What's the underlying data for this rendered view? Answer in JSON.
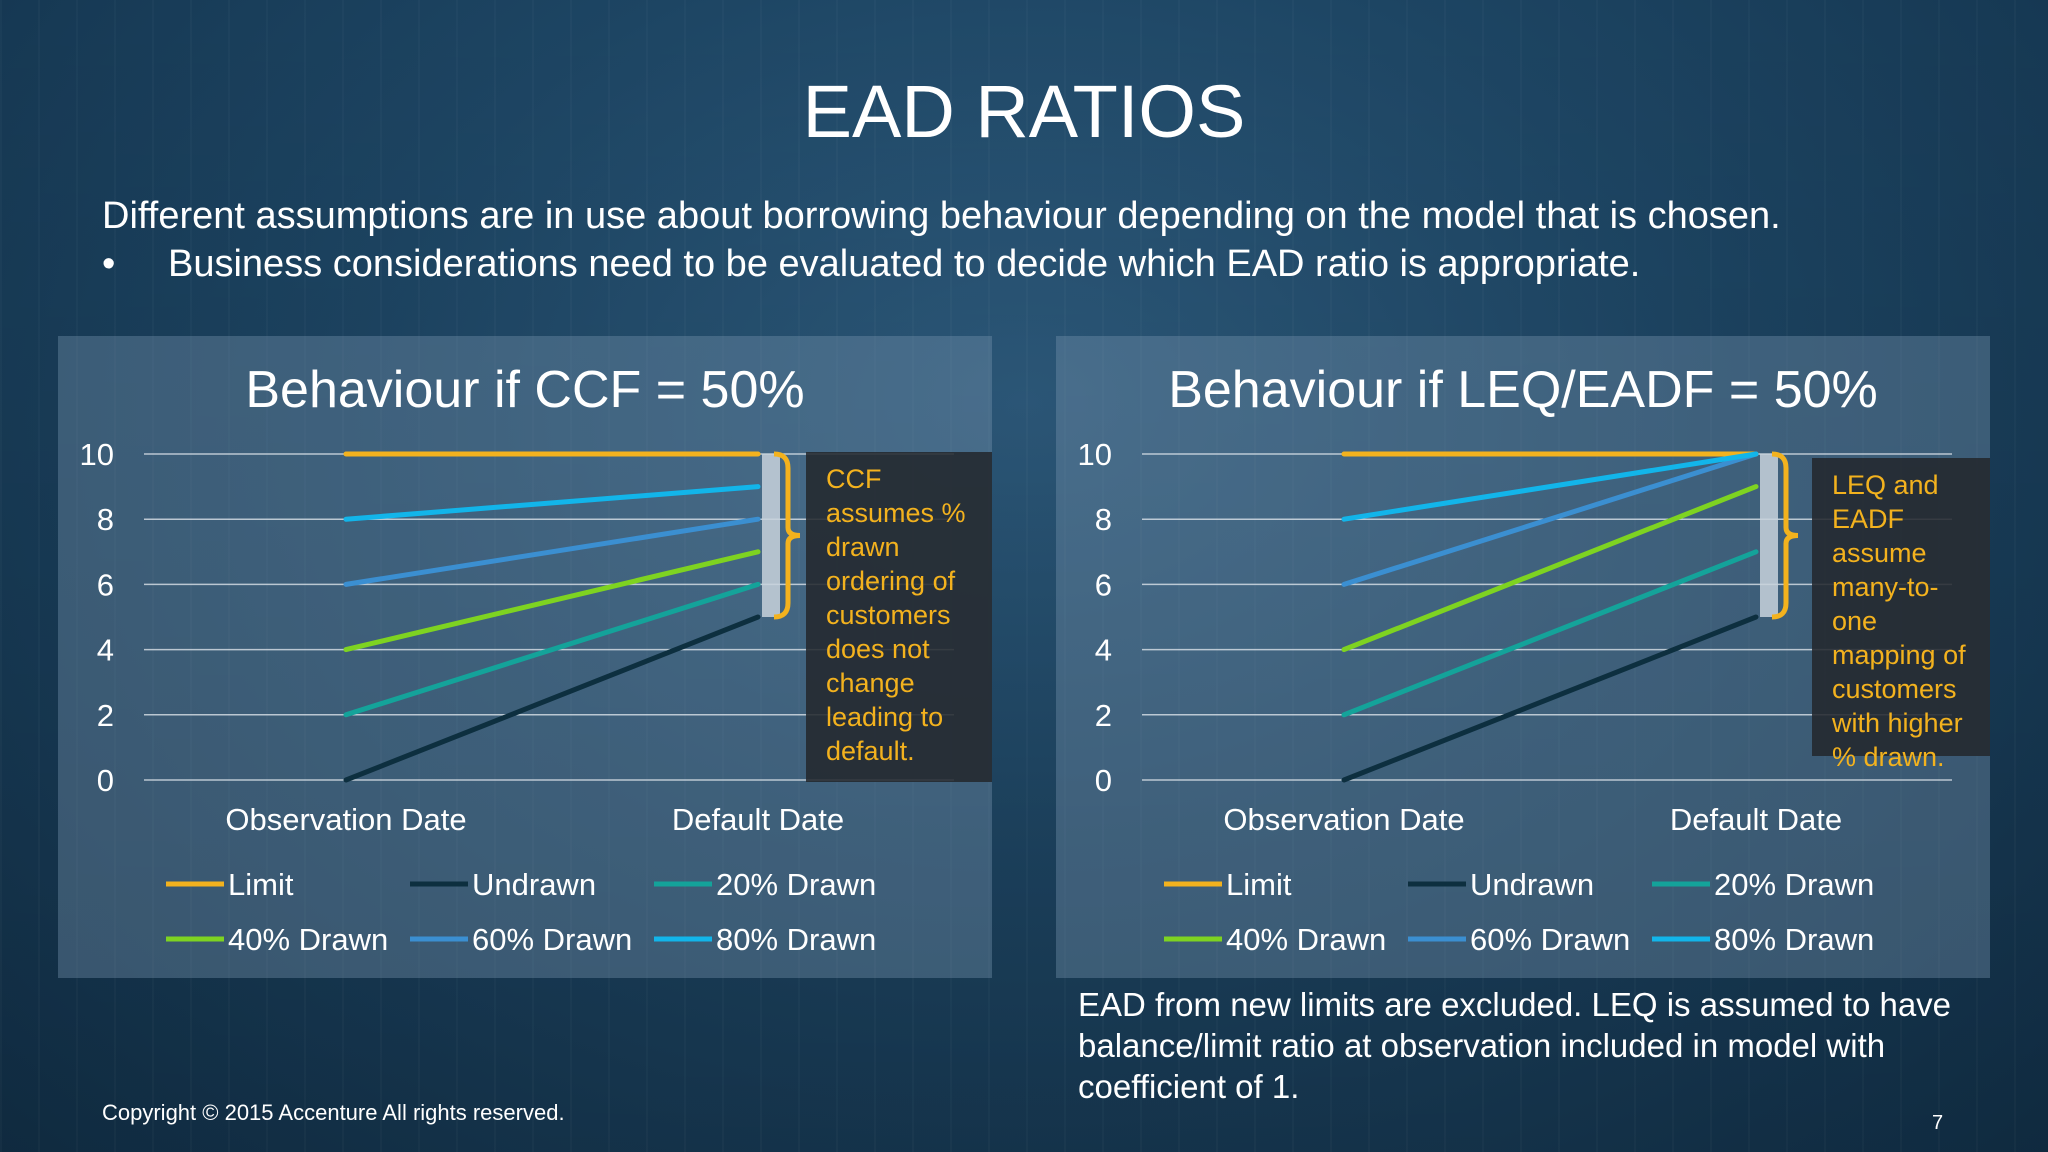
{
  "slide": {
    "title": "EAD RATIOS",
    "intro_line": "Different assumptions are in use about borrowing behaviour depending on the model that is chosen.",
    "bullet_symbol": "•",
    "bullet_text": "Business considerations need to be evaluated to decide which EAD ratio is appropriate.",
    "footnote": "EAD from new limits are excluded. LEQ is assumed to have balance/limit ratio at observation included in model with coefficient of 1.",
    "copyright": "Copyright © 2015 Accenture  All rights reserved.",
    "page_number": "7"
  },
  "callouts": {
    "ccf": "CCF assumes % drawn ordering of customers does not change leading to default.",
    "leq": "LEQ and EADF assume many-to-one mapping of customers with higher % drawn.",
    "color": "#f3b21e"
  },
  "chart_data": [
    {
      "type": "line",
      "title": "Behaviour if CCF = 50%",
      "categories": [
        "Observation Date",
        "Default Date"
      ],
      "ylim": [
        0,
        10
      ],
      "yticks": [
        0,
        2,
        4,
        6,
        8,
        10
      ],
      "grid": true,
      "legend_position": "bottom",
      "series": [
        {
          "name": "Limit",
          "color": "#f3b21e",
          "values": [
            10,
            10
          ]
        },
        {
          "name": "Undrawn",
          "color": "#0d2f3f",
          "values": [
            0,
            5
          ]
        },
        {
          "name": "20% Drawn",
          "color": "#14a39a",
          "values": [
            2,
            6
          ]
        },
        {
          "name": "40% Drawn",
          "color": "#7ed321",
          "values": [
            4,
            7
          ]
        },
        {
          "name": "60% Drawn",
          "color": "#3b8fd1",
          "values": [
            6,
            8
          ]
        },
        {
          "name": "80% Drawn",
          "color": "#12b5ea",
          "values": [
            8,
            9
          ]
        }
      ]
    },
    {
      "type": "line",
      "title": "Behaviour if LEQ/EADF = 50%",
      "categories": [
        "Observation Date",
        "Default Date"
      ],
      "ylim": [
        0,
        10
      ],
      "yticks": [
        0,
        2,
        4,
        6,
        8,
        10
      ],
      "grid": true,
      "legend_position": "bottom",
      "series": [
        {
          "name": "Limit",
          "color": "#f3b21e",
          "values": [
            10,
            10
          ]
        },
        {
          "name": "Undrawn",
          "color": "#0d2f3f",
          "values": [
            0,
            5
          ]
        },
        {
          "name": "20% Drawn",
          "color": "#14a39a",
          "values": [
            2,
            7
          ]
        },
        {
          "name": "40% Drawn",
          "color": "#7ed321",
          "values": [
            4,
            9
          ]
        },
        {
          "name": "60% Drawn",
          "color": "#3b8fd1",
          "values": [
            6,
            10
          ]
        },
        {
          "name": "80% Drawn",
          "color": "#12b5ea",
          "values": [
            8,
            10
          ]
        }
      ]
    }
  ]
}
